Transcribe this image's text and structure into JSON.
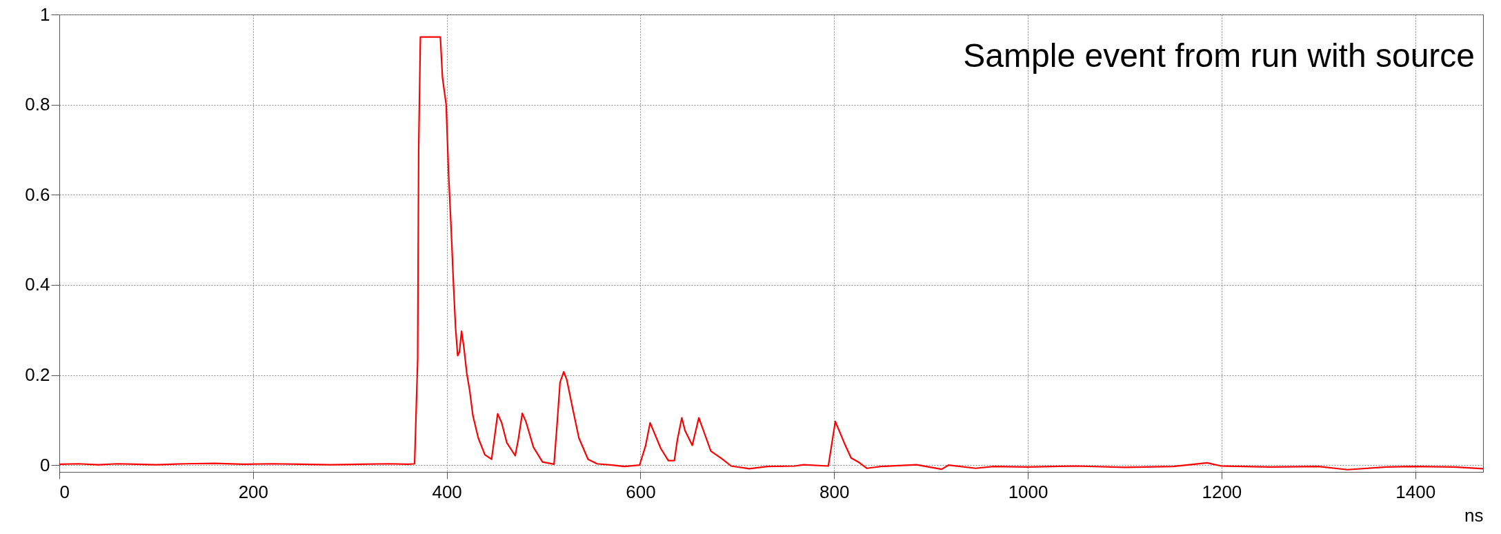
{
  "chart_data": {
    "type": "line",
    "title": "Sample event from run with source",
    "xlabel": "ns",
    "xlim": [
      0,
      1470
    ],
    "ylim": [
      -0.015,
      1
    ],
    "xticks": [
      0,
      200,
      400,
      600,
      800,
      1000,
      1200,
      1400
    ],
    "yticks": [
      0,
      0.2,
      0.4,
      0.6,
      0.8,
      1
    ],
    "grid": true,
    "line_style": "solid",
    "series": [
      {
        "color": "#ff0000",
        "x": [
          0,
          20,
          40,
          60,
          80,
          100,
          130,
          160,
          190,
          220,
          250,
          280,
          310,
          340,
          360,
          366.8,
          370,
          371,
          372.8,
          393.4,
          395.6,
          399.4,
          401.9,
          404.4,
          406.9,
          409.1,
          411.3,
          413.1,
          415.3,
          417.5,
          420.7,
          423.8,
          427,
          432.6,
          439.4,
          446.3,
          449.5,
          452.6,
          456.7,
          462,
          470.7,
          473.9,
          478,
          481.7,
          489.5,
          498.9,
          510.8,
          513.9,
          517,
          520.8,
          523.9,
          530.2,
          536.5,
          545.9,
          555.2,
          570.9,
          583.4,
          599.1,
          605.3,
          610,
          621,
          628.8,
          635,
          638.2,
          642.7,
          646,
          653.5,
          660.3,
          672.7,
          684.3,
          693.7,
          712.4,
          731,
          759,
          768.5,
          794,
          797.7,
          801.2,
          810.5,
          817.5,
          825.7,
          833.9,
          847.9,
          885,
          911,
          918,
          946,
          964.7,
          1000,
          1050,
          1100,
          1150,
          1185,
          1200,
          1250,
          1300,
          1330,
          1370,
          1400,
          1440,
          1470
        ],
        "values": [
          0.002,
          0.003,
          0.001,
          0.003,
          0.002,
          0.001,
          0.003,
          0.004,
          0.002,
          0.003,
          0.002,
          0.001,
          0.002,
          0.003,
          0.002,
          0.003,
          0.234,
          0.7,
          0.95,
          0.95,
          0.86,
          0.8,
          0.646,
          0.532,
          0.405,
          0.305,
          0.243,
          0.251,
          0.297,
          0.265,
          0.204,
          0.164,
          0.11,
          0.06,
          0.023,
          0.013,
          0.064,
          0.114,
          0.094,
          0.05,
          0.021,
          0.057,
          0.115,
          0.097,
          0.04,
          0.007,
          0.002,
          0.09,
          0.184,
          0.207,
          0.19,
          0.124,
          0.06,
          0.013,
          0.003,
          0,
          -0.003,
          0,
          0.043,
          0.094,
          0.037,
          0.01,
          0.01,
          0.057,
          0.105,
          0.077,
          0.044,
          0.105,
          0.031,
          0.014,
          -0.002,
          -0.008,
          -0.003,
          -0.002,
          0.001,
          -0.002,
          0.049,
          0.097,
          0.049,
          0.016,
          0.006,
          -0.007,
          -0.003,
          0.001,
          -0.009,
          0,
          -0.007,
          -0.003,
          -0.004,
          -0.002,
          -0.005,
          -0.003,
          0.005,
          -0.002,
          -0.004,
          -0.003,
          -0.01,
          -0.004,
          -0.003,
          -0.004,
          -0.008
        ]
      }
    ]
  }
}
